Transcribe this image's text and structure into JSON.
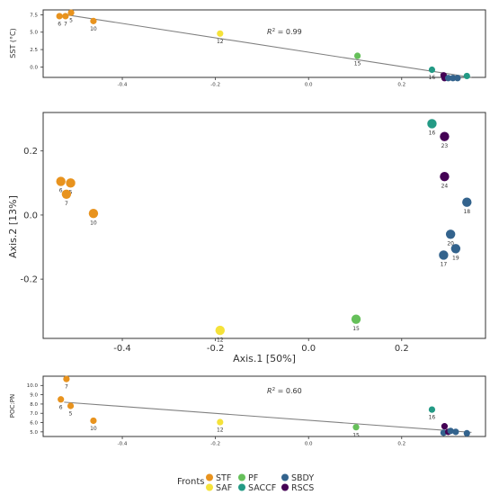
{
  "chart_data": [
    {
      "type": "scatter",
      "ylabel": "SST (°C)",
      "xlim": [
        -0.57,
        0.38
      ],
      "ylim": [
        -1.5,
        8.2
      ],
      "xticks": [
        "-0.4",
        "-0.2",
        "0.0",
        "0.2"
      ],
      "yticks": [
        "0.0",
        "2.5",
        "5.0",
        "7.5"
      ],
      "annotation_prefix": "R",
      "annotation_sup": "2",
      "annotation_value": " = 0.99",
      "trend": {
        "x": [
          -0.525,
          0.35
        ],
        "y": [
          7.55,
          -1.5
        ]
      },
      "points": [
        {
          "label": "6",
          "front": "STF",
          "x": -0.535,
          "y": 7.3
        },
        {
          "label": "7",
          "front": "STF",
          "x": -0.522,
          "y": 7.3
        },
        {
          "label": "5",
          "front": "STF",
          "x": -0.51,
          "y": 7.8
        },
        {
          "label": "10",
          "front": "STF",
          "x": -0.462,
          "y": 6.6
        },
        {
          "label": "12",
          "front": "SAF",
          "x": -0.19,
          "y": 4.8
        },
        {
          "label": "15",
          "front": "PF",
          "x": 0.105,
          "y": 1.6
        },
        {
          "label": "16",
          "front": "SACCF",
          "x": 0.265,
          "y": -0.4
        },
        {
          "label": "",
          "front": "RSCS",
          "x": 0.29,
          "y": -1.2
        },
        {
          "label": "",
          "front": "RSCS",
          "x": 0.292,
          "y": -1.6
        },
        {
          "label": "",
          "front": "SBDY",
          "x": 0.3,
          "y": -1.6
        },
        {
          "label": "",
          "front": "SBDY",
          "x": 0.31,
          "y": -1.6
        },
        {
          "label": "",
          "front": "SBDY",
          "x": 0.32,
          "y": -1.6
        },
        {
          "label": "",
          "front": "SACCF",
          "x": 0.34,
          "y": -1.3
        }
      ]
    },
    {
      "type": "scatter",
      "xlabel": "Axis.1   [50%]",
      "ylabel": "Axis.2   [13%]",
      "xlim": [
        -0.57,
        0.38
      ],
      "ylim": [
        -0.385,
        0.32
      ],
      "xticks": [
        "-0.4",
        "-0.2",
        "0.0",
        "0.2"
      ],
      "yticks": [
        "-0.2",
        "0.0",
        "0.2"
      ],
      "points": [
        {
          "label": "6",
          "front": "STF",
          "x": -0.532,
          "y": 0.105
        },
        {
          "label": "5",
          "front": "STF",
          "x": -0.511,
          "y": 0.1
        },
        {
          "label": "7",
          "front": "STF",
          "x": -0.52,
          "y": 0.065
        },
        {
          "label": "10",
          "front": "STF",
          "x": -0.462,
          "y": 0.005
        },
        {
          "label": "12",
          "front": "SAF",
          "x": -0.19,
          "y": -0.36
        },
        {
          "label": "15",
          "front": "PF",
          "x": 0.102,
          "y": -0.325
        },
        {
          "label": "16",
          "front": "SACCF",
          "x": 0.265,
          "y": 0.285
        },
        {
          "label": "23",
          "front": "RSCS",
          "x": 0.292,
          "y": 0.245
        },
        {
          "label": "24",
          "front": "RSCS",
          "x": 0.292,
          "y": 0.12
        },
        {
          "label": "18",
          "front": "SBDY",
          "x": 0.34,
          "y": 0.04
        },
        {
          "label": "20",
          "front": "SBDY",
          "x": 0.305,
          "y": -0.06
        },
        {
          "label": "19",
          "front": "SBDY",
          "x": 0.316,
          "y": -0.105
        },
        {
          "label": "17",
          "front": "SBDY",
          "x": 0.29,
          "y": -0.125
        }
      ]
    },
    {
      "type": "scatter",
      "ylabel": "POC:PN",
      "xlim": [
        -0.57,
        0.38
      ],
      "ylim": [
        4.5,
        11.0
      ],
      "xticks": [
        "-0.4",
        "-0.2",
        "0.0",
        "0.2"
      ],
      "yticks": [
        "5.0",
        "6.0",
        "7.0",
        "8.0",
        "9.0",
        "10.0"
      ],
      "annotation_prefix": "R",
      "annotation_sup": "2",
      "annotation_value": " = 0.60",
      "trend": {
        "x": [
          -0.525,
          0.35
        ],
        "y": [
          8.2,
          4.95
        ]
      },
      "points": [
        {
          "label": "7",
          "front": "STF",
          "x": -0.52,
          "y": 10.7
        },
        {
          "label": "6",
          "front": "STF",
          "x": -0.532,
          "y": 8.5
        },
        {
          "label": "5",
          "front": "STF",
          "x": -0.511,
          "y": 7.8
        },
        {
          "label": "10",
          "front": "STF",
          "x": -0.462,
          "y": 6.2
        },
        {
          "label": "12",
          "front": "SAF",
          "x": -0.19,
          "y": 6.05
        },
        {
          "label": "15",
          "front": "PF",
          "x": 0.102,
          "y": 5.5
        },
        {
          "label": "16",
          "front": "SACCF",
          "x": 0.265,
          "y": 7.4
        },
        {
          "label": "",
          "front": "RSCS",
          "x": 0.292,
          "y": 5.6
        },
        {
          "label": "",
          "front": "SBDY",
          "x": 0.29,
          "y": 4.9
        },
        {
          "label": "",
          "front": "RSCS",
          "x": 0.3,
          "y": 5.0
        },
        {
          "label": "",
          "front": "SBDY",
          "x": 0.305,
          "y": 5.1
        },
        {
          "label": "",
          "front": "SBDY",
          "x": 0.316,
          "y": 5.0
        },
        {
          "label": "",
          "front": "SBDY",
          "x": 0.34,
          "y": 4.85
        }
      ]
    }
  ],
  "legend": {
    "title": "Fronts",
    "items": [
      {
        "label": "STF",
        "front": "STF"
      },
      {
        "label": "SAF",
        "front": "SAF"
      },
      {
        "label": "PF",
        "front": "PF"
      },
      {
        "label": "SACCF",
        "front": "SACCF"
      },
      {
        "label": "SBDY",
        "front": "SBDY"
      },
      {
        "label": "RSCS",
        "front": "RSCS"
      }
    ]
  },
  "colors": {
    "STF": "#e8931e",
    "SAF": "#f5e23a",
    "PF": "#66c05a",
    "SACCF": "#239a85",
    "SBDY": "#33638d",
    "RSCS": "#440154",
    "trend": "#808080",
    "border": "#333333",
    "text": "#333333"
  }
}
